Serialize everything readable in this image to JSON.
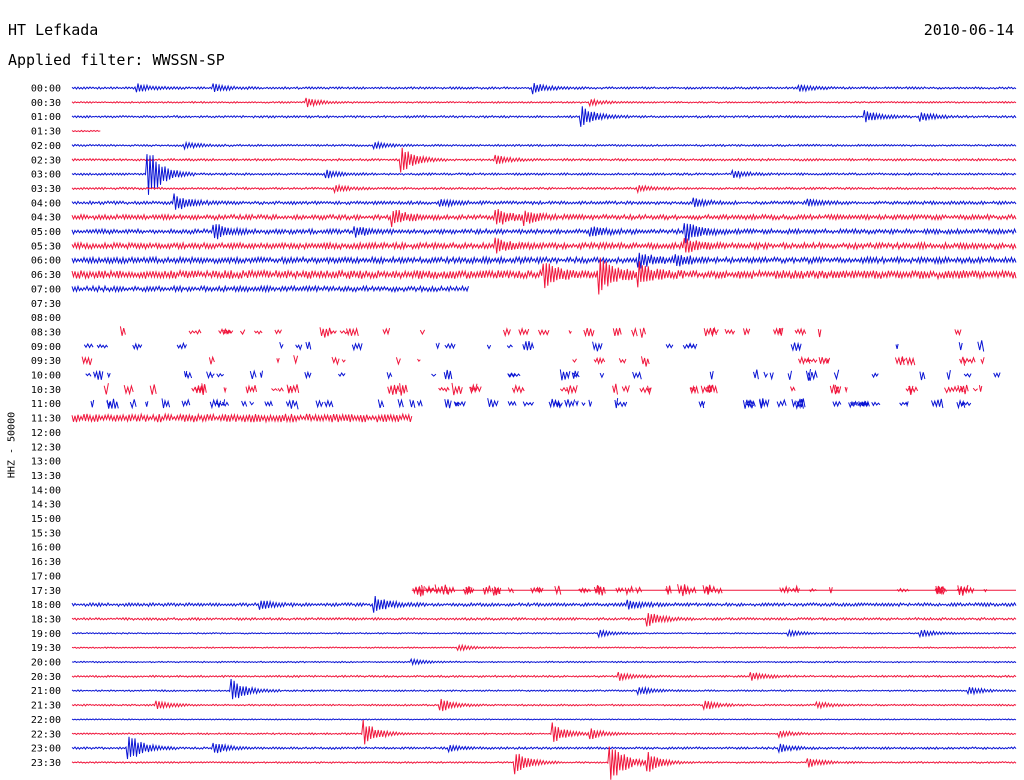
{
  "header": {
    "station": "HT Lefkada",
    "date": "2010-06-14",
    "filter": "Applied filter: WWSSN-SP"
  },
  "channel_label": "HHZ - 50000",
  "colors": {
    "even_hour": "#0a14d4",
    "half_hour": "#f0163c",
    "text": "#000000"
  },
  "chart_data": {
    "type": "line",
    "title": "HT Lefkada",
    "xlabel": "",
    "ylabel": "HHZ - 50000",
    "time_labels": [
      "00:00",
      "00:30",
      "01:00",
      "01:30",
      "02:00",
      "02:30",
      "03:00",
      "03:30",
      "04:00",
      "04:30",
      "05:00",
      "05:30",
      "06:00",
      "06:30",
      "07:00",
      "07:30",
      "08:00",
      "08:30",
      "09:00",
      "09:30",
      "10:00",
      "10:30",
      "11:00",
      "11:30",
      "12:00",
      "12:30",
      "13:00",
      "13:30",
      "14:00",
      "14:30",
      "15:00",
      "15:30",
      "16:00",
      "16:30",
      "17:00",
      "17:30",
      "18:00",
      "18:30",
      "19:00",
      "19:30",
      "20:00",
      "20:30",
      "21:00",
      "21:30",
      "22:00",
      "22:30",
      "23:00",
      "23:30"
    ],
    "traces": [
      {
        "label": "00:00",
        "style": "continuous",
        "noise": 0.8,
        "bursts": [
          [
            0.07,
            4
          ],
          [
            0.15,
            4
          ],
          [
            0.49,
            5
          ],
          [
            0.77,
            3
          ]
        ]
      },
      {
        "label": "00:30",
        "style": "continuous",
        "noise": 0.6,
        "bursts": [
          [
            0.25,
            4
          ],
          [
            0.55,
            3
          ]
        ]
      },
      {
        "label": "01:00",
        "style": "continuous",
        "noise": 0.8,
        "bursts": [
          [
            0.54,
            10
          ],
          [
            0.84,
            6
          ],
          [
            0.9,
            4
          ]
        ]
      },
      {
        "label": "01:30",
        "style": "partial",
        "noise": 0.5,
        "end": 0.03,
        "bursts": []
      },
      {
        "label": "02:00",
        "style": "continuous",
        "noise": 0.7,
        "bursts": [
          [
            0.12,
            3
          ],
          [
            0.32,
            3
          ]
        ]
      },
      {
        "label": "02:30",
        "style": "continuous",
        "noise": 0.8,
        "bursts": [
          [
            0.35,
            12
          ],
          [
            0.45,
            4
          ]
        ]
      },
      {
        "label": "03:00",
        "style": "continuous",
        "noise": 0.8,
        "bursts": [
          [
            0.08,
            28
          ],
          [
            0.27,
            4
          ],
          [
            0.7,
            4
          ]
        ]
      },
      {
        "label": "03:30",
        "style": "continuous",
        "noise": 0.8,
        "bursts": [
          [
            0.28,
            3
          ],
          [
            0.6,
            3
          ]
        ]
      },
      {
        "label": "04:00",
        "style": "continuous",
        "noise": 1.2,
        "bursts": [
          [
            0.11,
            8
          ],
          [
            0.39,
            4
          ],
          [
            0.66,
            4
          ],
          [
            0.78,
            3
          ]
        ]
      },
      {
        "label": "04:30",
        "style": "continuous",
        "noise": 1.8,
        "bursts": [
          [
            0.34,
            8
          ],
          [
            0.45,
            8
          ],
          [
            0.48,
            5
          ]
        ]
      },
      {
        "label": "05:00",
        "style": "continuous",
        "noise": 1.8,
        "bursts": [
          [
            0.15,
            8
          ],
          [
            0.3,
            4
          ],
          [
            0.55,
            4
          ],
          [
            0.65,
            10
          ]
        ]
      },
      {
        "label": "05:30",
        "style": "continuous",
        "noise": 2.2,
        "bursts": [
          [
            0.45,
            6
          ],
          [
            0.65,
            6
          ]
        ]
      },
      {
        "label": "06:00",
        "style": "continuous",
        "noise": 2.2,
        "bursts": [
          [
            0.6,
            7
          ],
          [
            0.64,
            5
          ]
        ]
      },
      {
        "label": "06:30",
        "style": "continuous",
        "noise": 3,
        "bursts": [
          [
            0.5,
            12
          ],
          [
            0.56,
            16
          ],
          [
            0.6,
            10
          ]
        ]
      },
      {
        "label": "07:00",
        "style": "partial",
        "noise": 2,
        "end": 0.42,
        "bursts": []
      },
      {
        "label": "07:30",
        "style": "gap"
      },
      {
        "label": "08:00",
        "style": "gap"
      },
      {
        "label": "08:30",
        "style": "gapped",
        "density": 0.45
      },
      {
        "label": "09:00",
        "style": "gapped",
        "density": 0.3
      },
      {
        "label": "09:30",
        "style": "gapped",
        "density": 0.35
      },
      {
        "label": "10:00",
        "style": "gapped",
        "density": 0.6
      },
      {
        "label": "10:30",
        "style": "gapped",
        "density": 0.65
      },
      {
        "label": "11:00",
        "style": "gapped",
        "density": 0.8
      },
      {
        "label": "11:30",
        "style": "partial",
        "noise": 3,
        "end": 0.36,
        "bursts": []
      },
      {
        "label": "12:00",
        "style": "gap"
      },
      {
        "label": "12:30",
        "style": "gap"
      },
      {
        "label": "13:00",
        "style": "gap"
      },
      {
        "label": "13:30",
        "style": "gap"
      },
      {
        "label": "14:00",
        "style": "gap"
      },
      {
        "label": "14:30",
        "style": "gap"
      },
      {
        "label": "15:00",
        "style": "gap"
      },
      {
        "label": "15:30",
        "style": "gap"
      },
      {
        "label": "16:00",
        "style": "gap"
      },
      {
        "label": "16:30",
        "style": "gap"
      },
      {
        "label": "17:00",
        "style": "gap"
      },
      {
        "label": "17:30",
        "style": "starts",
        "start": 0.36,
        "density": 0.5
      },
      {
        "label": "18:00",
        "style": "continuous",
        "noise": 1.2,
        "bursts": [
          [
            0.32,
            8
          ],
          [
            0.2,
            4
          ],
          [
            0.59,
            4
          ]
        ]
      },
      {
        "label": "18:30",
        "style": "continuous",
        "noise": 0.9,
        "bursts": [
          [
            0.61,
            7
          ]
        ]
      },
      {
        "label": "19:00",
        "style": "continuous",
        "noise": 0.5,
        "bursts": [
          [
            0.56,
            3
          ],
          [
            0.76,
            3
          ],
          [
            0.9,
            4
          ]
        ]
      },
      {
        "label": "19:30",
        "style": "continuous",
        "noise": 0.5,
        "bursts": [
          [
            0.41,
            3
          ]
        ]
      },
      {
        "label": "20:00",
        "style": "continuous",
        "noise": 0.5,
        "bursts": [
          [
            0.36,
            3
          ]
        ]
      },
      {
        "label": "20:30",
        "style": "continuous",
        "noise": 0.7,
        "bursts": [
          [
            0.58,
            4
          ],
          [
            0.72,
            4
          ]
        ]
      },
      {
        "label": "21:00",
        "style": "continuous",
        "noise": 0.6,
        "bursts": [
          [
            0.17,
            12
          ],
          [
            0.6,
            4
          ],
          [
            0.95,
            4
          ]
        ]
      },
      {
        "label": "21:30",
        "style": "continuous",
        "noise": 0.6,
        "bursts": [
          [
            0.09,
            5
          ],
          [
            0.39,
            7
          ],
          [
            0.67,
            5
          ],
          [
            0.79,
            3
          ]
        ]
      },
      {
        "label": "22:00",
        "style": "continuous",
        "noise": 0.4,
        "bursts": []
      },
      {
        "label": "22:30",
        "style": "continuous",
        "noise": 0.6,
        "bursts": [
          [
            0.31,
            12
          ],
          [
            0.51,
            10
          ],
          [
            0.55,
            5
          ],
          [
            0.75,
            3
          ]
        ]
      },
      {
        "label": "23:00",
        "style": "continuous",
        "noise": 0.8,
        "bursts": [
          [
            0.06,
            14
          ],
          [
            0.15,
            6
          ],
          [
            0.4,
            3
          ],
          [
            0.75,
            4
          ]
        ]
      },
      {
        "label": "23:30",
        "style": "continuous",
        "noise": 0.6,
        "bursts": [
          [
            0.47,
            12
          ],
          [
            0.57,
            24
          ],
          [
            0.61,
            10
          ],
          [
            0.78,
            5
          ]
        ]
      }
    ]
  }
}
